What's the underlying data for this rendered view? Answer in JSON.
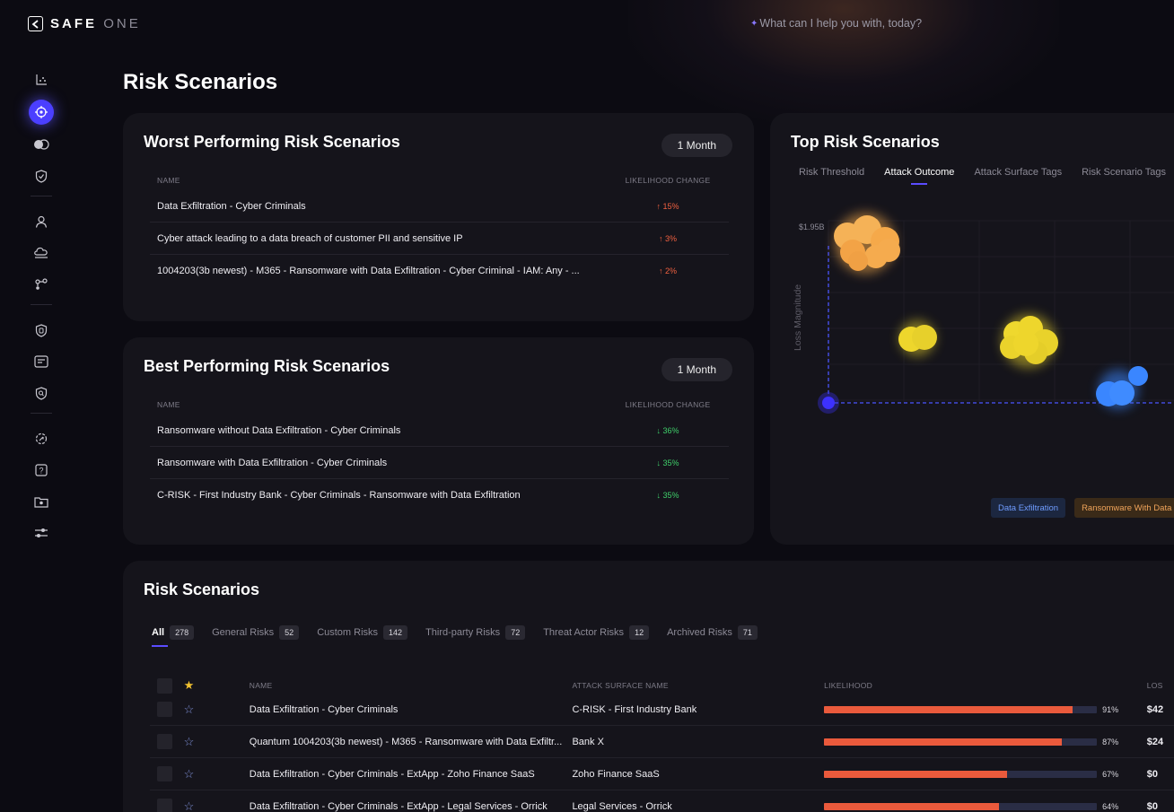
{
  "brand": {
    "main": "SAFE",
    "sub": "ONE"
  },
  "assistant": {
    "prompt": "What can I help you with, today?"
  },
  "sidebar": {
    "icons": [
      "chart-icon",
      "risk-scenarios-icon",
      "toggle-icon",
      "shield-icon",
      "user-icon",
      "cloud-icon",
      "connections-icon",
      "security-badge-icon",
      "list-icon",
      "search-shield-icon",
      "gear-icon",
      "help-icon",
      "camera-folder-icon",
      "sliders-icon"
    ]
  },
  "page": {
    "title": "Risk Scenarios"
  },
  "worst": {
    "title": "Worst Performing Risk Scenarios",
    "period": "1 Month",
    "col_name": "NAME",
    "col_change": "LIKELIHOOD CHANGE",
    "rows": [
      {
        "name": "Data Exfiltration - Cyber Criminals",
        "change": "↑ 15%"
      },
      {
        "name": "Cyber attack leading to a data breach of customer PII and sensitive IP",
        "change": "↑ 3%"
      },
      {
        "name": "1004203(3b newest) - M365 - Ransomware with Data Exfiltration - Cyber Criminal - IAM: Any - ...",
        "change": "↑ 2%"
      }
    ]
  },
  "best": {
    "title": "Best Performing Risk Scenarios",
    "period": "1 Month",
    "col_name": "NAME",
    "col_change": "LIKELIHOOD CHANGE",
    "rows": [
      {
        "name": "Ransomware without Data Exfiltration - Cyber Criminals",
        "change": "↓ 36%"
      },
      {
        "name": "Ransomware with Data Exfiltration - Cyber Criminals",
        "change": "↓ 35%"
      },
      {
        "name": "C-RISK - First Industry Bank - Cyber Criminals - Ransomware with Data Exfiltration",
        "change": "↓ 35%"
      }
    ]
  },
  "top": {
    "title": "Top Risk Scenarios",
    "tabs": [
      "Risk Threshold",
      "Attack Outcome",
      "Attack Surface Tags",
      "Risk Scenario Tags"
    ],
    "active_tab": 1,
    "y_tick": "$1.95B",
    "y_label": "Loss Magnitude",
    "legend": [
      "Data Exfiltration",
      "Ransomware With Data"
    ],
    "colors": {
      "orange": "#f5a94a",
      "yellow": "#ecd52a",
      "blue": "#3a86ff",
      "origin": "#3d31ff"
    }
  },
  "scenarios": {
    "title": "Risk Scenarios",
    "tabs": [
      {
        "label": "All",
        "count": "278"
      },
      {
        "label": "General Risks",
        "count": "52"
      },
      {
        "label": "Custom Risks",
        "count": "142"
      },
      {
        "label": "Third-party Risks",
        "count": "72"
      },
      {
        "label": "Threat Actor Risks",
        "count": "12"
      },
      {
        "label": "Archived Risks",
        "count": "71"
      }
    ],
    "columns": {
      "name": "NAME",
      "asn": "ATTACK SURFACE NAME",
      "likelihood": "LIKELIHOOD",
      "loss": "LOS"
    },
    "rows": [
      {
        "name": "Data Exfiltration - Cyber Criminals",
        "asn": "C-RISK - First Industry Bank",
        "likelihood": 0.91,
        "pct": "91%",
        "loss": "$42"
      },
      {
        "name": "Quantum 1004203(3b newest) - M365 - Ransomware with Data Exfiltr...",
        "asn": "Bank X",
        "likelihood": 0.87,
        "pct": "87%",
        "loss": "$24"
      },
      {
        "name": "Data Exfiltration - Cyber Criminals - ExtApp - Zoho Finance SaaS",
        "asn": "Zoho Finance SaaS",
        "likelihood": 0.67,
        "pct": "67%",
        "loss": "$0"
      },
      {
        "name": "Data Exfiltration - Cyber Criminals - ExtApp - Legal Services - Orrick",
        "asn": "Legal Services - Orrick",
        "likelihood": 0.64,
        "pct": "64%",
        "loss": "$0"
      }
    ]
  }
}
